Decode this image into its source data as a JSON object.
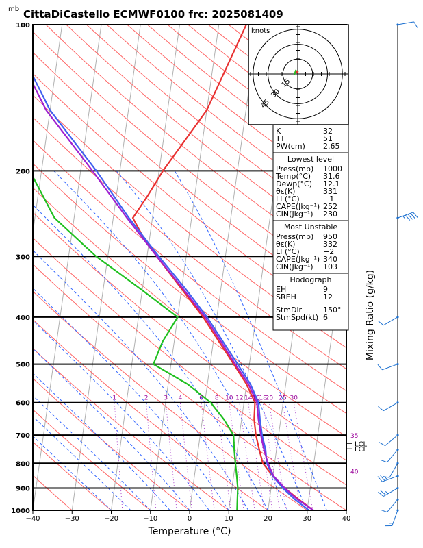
{
  "title": "CittaDiCastello ECMWF0100  frc: 2025081409",
  "units_label": "mb",
  "chart_data": {
    "type": "skew-t",
    "xlabel": "Temperature (°C)",
    "ylabel_right": "Mixing Ratio (g/kg)",
    "x_ticks": [
      -40,
      -30,
      -20,
      -10,
      0,
      10,
      20,
      30,
      40
    ],
    "pressure_ticks": [
      100,
      200,
      300,
      400,
      500,
      600,
      700,
      800,
      900,
      1000
    ],
    "pressure_tick_labels": [
      "100",
      "200",
      "300",
      "400",
      "500",
      "600",
      "700",
      "800",
      "900",
      "1000"
    ],
    "mixing_ratio_labels": [
      "1",
      "2",
      "3",
      "4",
      "6",
      "8",
      "10",
      "12",
      "14",
      "16",
      "18",
      "20",
      "25",
      "30"
    ],
    "mixing_ratio_values": [
      1,
      2,
      3,
      4,
      6,
      8,
      10,
      12,
      14,
      16,
      18,
      20,
      25,
      30
    ],
    "side_labels": [
      {
        "text": "35",
        "p": 700
      },
      {
        "text": "40",
        "p": 830
      },
      {
        "text": "LCL",
        "p": 728
      },
      {
        "text": "LCL",
        "p": 747
      }
    ],
    "series": [
      {
        "role": "temperature",
        "color": "#e83030",
        "points": [
          [
            1000,
            31.6
          ],
          [
            950,
            27.5
          ],
          [
            900,
            23.5
          ],
          [
            850,
            20
          ],
          [
            800,
            17
          ],
          [
            750,
            15.6
          ],
          [
            700,
            14.2
          ],
          [
            650,
            13.2
          ],
          [
            600,
            12.8
          ],
          [
            550,
            10
          ],
          [
            500,
            6
          ],
          [
            450,
            1.5
          ],
          [
            400,
            -3.5
          ],
          [
            350,
            -10
          ],
          [
            300,
            -17.5
          ],
          [
            275,
            -21.5
          ],
          [
            250,
            -25
          ],
          [
            225,
            -22
          ],
          [
            200,
            -19
          ],
          [
            150,
            -10
          ],
          [
            100,
            -3
          ]
        ]
      },
      {
        "role": "dewpoint",
        "color": "#20c020",
        "points": [
          [
            1000,
            12.1
          ],
          [
            950,
            11.8
          ],
          [
            900,
            11.5
          ],
          [
            850,
            10.8
          ],
          [
            800,
            10
          ],
          [
            750,
            9.2
          ],
          [
            700,
            8.5
          ],
          [
            650,
            5.5
          ],
          [
            600,
            1.5
          ],
          [
            550,
            -5
          ],
          [
            500,
            -14.5
          ],
          [
            450,
            -13
          ],
          [
            400,
            -10
          ],
          [
            350,
            -20.5
          ],
          [
            300,
            -33
          ],
          [
            250,
            -45
          ],
          [
            200,
            -53
          ],
          [
            150,
            -55
          ],
          [
            100,
            -58
          ]
        ]
      },
      {
        "role": "parcel-blue",
        "color": "#4060f0",
        "points": [
          [
            1000,
            30.5
          ],
          [
            950,
            26.5
          ],
          [
            900,
            23
          ],
          [
            850,
            20
          ],
          [
            800,
            18
          ],
          [
            750,
            17.2
          ],
          [
            700,
            15.8
          ],
          [
            650,
            14.7
          ],
          [
            600,
            13.7
          ],
          [
            550,
            11
          ],
          [
            500,
            7
          ],
          [
            450,
            2.5
          ],
          [
            400,
            -2.5
          ],
          [
            350,
            -9
          ],
          [
            300,
            -17
          ],
          [
            250,
            -26
          ],
          [
            200,
            -36
          ],
          [
            150,
            -50
          ],
          [
            100,
            -64
          ]
        ]
      },
      {
        "role": "parcel-purple",
        "color": "#a020d0",
        "points": [
          [
            1000,
            31.6
          ],
          [
            950,
            27.2
          ],
          [
            900,
            23.5
          ],
          [
            850,
            20.2
          ],
          [
            800,
            18.3
          ],
          [
            750,
            16.8
          ],
          [
            700,
            15.5
          ],
          [
            650,
            14.3
          ],
          [
            600,
            13.3
          ],
          [
            550,
            10.5
          ],
          [
            500,
            6.4
          ],
          [
            450,
            2
          ],
          [
            400,
            -3
          ],
          [
            350,
            -9.6
          ],
          [
            300,
            -17.5
          ],
          [
            250,
            -26.5
          ],
          [
            200,
            -37
          ],
          [
            150,
            -51
          ],
          [
            100,
            -65
          ]
        ]
      }
    ],
    "hodograph": {
      "label": "knots",
      "ring_labels": [
        "15",
        "30",
        "45"
      ],
      "ring_values": [
        15,
        30,
        45
      ]
    },
    "wind_barbs": [
      {
        "p": 100,
        "dir": 80,
        "spd": 10
      },
      {
        "p": 250,
        "dir": 70,
        "spd": 35
      },
      {
        "p": 400,
        "dir": 240,
        "spd": 10
      },
      {
        "p": 500,
        "dir": 250,
        "spd": 10
      },
      {
        "p": 600,
        "dir": 240,
        "spd": 10
      },
      {
        "p": 700,
        "dir": 230,
        "spd": 10
      },
      {
        "p": 750,
        "dir": 220,
        "spd": 10
      },
      {
        "p": 800,
        "dir": 210,
        "spd": 10
      },
      {
        "p": 850,
        "dir": 250,
        "spd": 15
      },
      {
        "p": 900,
        "dir": 240,
        "spd": 15
      },
      {
        "p": 950,
        "dir": 220,
        "spd": 10
      },
      {
        "p": 1000,
        "dir": 200,
        "spd": 5
      }
    ]
  },
  "indices": {
    "top": [
      [
        "K",
        "32"
      ],
      [
        "TT",
        "51"
      ],
      [
        "PW(cm)",
        "2.65"
      ]
    ],
    "lowest_title": "Lowest level",
    "lowest": [
      [
        "Press(mb)",
        "1000"
      ],
      [
        "Temp(°C)",
        "31.6"
      ],
      [
        "Dewp(°C)",
        "12.1"
      ],
      [
        "θε(K)",
        "331"
      ],
      [
        "LI (°C)",
        "−1"
      ],
      [
        "CAPE(Jkg⁻¹)",
        "252"
      ],
      [
        "CIN(Jkg⁻¹)",
        "230"
      ]
    ],
    "unstable_title": "Most Unstable",
    "unstable": [
      [
        "Press(mb)",
        "950"
      ],
      [
        "θε(K)",
        "332"
      ],
      [
        "LI (°C)",
        "−2"
      ],
      [
        "CAPE(Jkg⁻¹)",
        "340"
      ],
      [
        "CIN(Jkg⁻¹)",
        "103"
      ]
    ],
    "hodo_title": "Hodograph",
    "hodo": [
      [
        "EH",
        "9"
      ],
      [
        "SREH",
        "12"
      ],
      [
        "StmDir",
        "150°"
      ],
      [
        "StmSpd(kt)",
        "6"
      ]
    ]
  }
}
